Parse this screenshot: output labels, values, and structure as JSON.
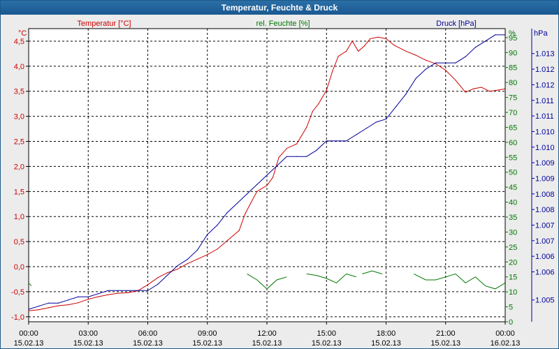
{
  "window": {
    "title": "Temperatur, Feuchte & Druck"
  },
  "chart_data": {
    "type": "line",
    "title": "Temperatur, Feuchte & Druck",
    "legend": [
      {
        "name": "Temperatur [°C]",
        "color": "#cc0000"
      },
      {
        "name": "rel. Feuchte [%]",
        "color": "#007700"
      },
      {
        "name": "Druck [hPa]",
        "color": "#000099"
      }
    ],
    "axes": {
      "temperature": {
        "unit": "°C",
        "min": -1.1,
        "max": 4.75,
        "ticks": [
          "-1,0",
          "-0,5",
          "0,0",
          "0,5",
          "1,0",
          "1,5",
          "2,0",
          "2,5",
          "3,0",
          "3,5",
          "4,0",
          "4,5"
        ],
        "tick_values": [
          -1,
          -0.5,
          0,
          0.5,
          1,
          1.5,
          2,
          2.5,
          3,
          3.5,
          4,
          4.5
        ]
      },
      "humidity": {
        "unit": "%",
        "min": 0,
        "max": 98,
        "ticks": [
          "0",
          "5",
          "10",
          "15",
          "20",
          "25",
          "30",
          "35",
          "40",
          "45",
          "50",
          "55",
          "60",
          "65",
          "70",
          "75",
          "80",
          "85",
          "90",
          "95"
        ],
        "tick_values": [
          0,
          5,
          10,
          15,
          20,
          25,
          30,
          35,
          40,
          45,
          50,
          55,
          60,
          65,
          70,
          75,
          80,
          85,
          90,
          95
        ]
      },
      "pressure": {
        "unit": "hPa",
        "min": 1.0043,
        "max": 1.0137,
        "ticks": [
          "1.005",
          "1.006",
          "1.006",
          "1.007",
          "1.007",
          "1.008",
          "1.008",
          "1.009",
          "1.009",
          "1.010",
          "1.010",
          "1.011",
          "1.011",
          "1.012",
          "1.012",
          "1.013"
        ],
        "tick_values": [
          1.005,
          1.0059,
          1.0064,
          1.0069,
          1.0074,
          1.0079,
          1.0084,
          1.0089,
          1.0094,
          1.0099,
          1.0104,
          1.0109,
          1.0114,
          1.0119,
          1.0124,
          1.0129
        ]
      }
    },
    "x": {
      "min": 0,
      "max": 24,
      "grid": true,
      "ticks": [
        {
          "time": "00:00",
          "date": "15.02.13"
        },
        {
          "time": "03:00",
          "date": "15.02.13"
        },
        {
          "time": "06:00",
          "date": "15.02.13"
        },
        {
          "time": "09:00",
          "date": "15.02.13"
        },
        {
          "time": "12:00",
          "date": "15.02.13"
        },
        {
          "time": "15:00",
          "date": "15.02.13"
        },
        {
          "time": "18:00",
          "date": "15.02.13"
        },
        {
          "time": "21:00",
          "date": "15.02.13"
        },
        {
          "time": "00:00",
          "date": "16.02.13"
        }
      ],
      "tick_values": [
        0,
        3,
        6,
        9,
        12,
        15,
        18,
        21,
        24
      ]
    },
    "series": [
      {
        "name": "Temperatur",
        "axis": "temperature",
        "color": "#cc0000",
        "points": [
          [
            0,
            -0.88
          ],
          [
            0.5,
            -0.86
          ],
          [
            1,
            -0.82
          ],
          [
            1.5,
            -0.78
          ],
          [
            2,
            -0.76
          ],
          [
            2.5,
            -0.72
          ],
          [
            3,
            -0.65
          ],
          [
            3.5,
            -0.6
          ],
          [
            4,
            -0.56
          ],
          [
            4.5,
            -0.53
          ],
          [
            5,
            -0.52
          ],
          [
            5.5,
            -0.48
          ],
          [
            6,
            -0.36
          ],
          [
            6.5,
            -0.22
          ],
          [
            7,
            -0.12
          ],
          [
            7.5,
            -0.05
          ],
          [
            8,
            0.06
          ],
          [
            8.5,
            0.15
          ],
          [
            9,
            0.24
          ],
          [
            9.5,
            0.35
          ],
          [
            10,
            0.52
          ],
          [
            10.3,
            0.62
          ],
          [
            10.6,
            0.72
          ],
          [
            10.9,
            1.05
          ],
          [
            11.2,
            1.28
          ],
          [
            11.5,
            1.5
          ],
          [
            12,
            1.62
          ],
          [
            12.3,
            1.78
          ],
          [
            12.6,
            2.18
          ],
          [
            13,
            2.36
          ],
          [
            13.5,
            2.45
          ],
          [
            14,
            2.78
          ],
          [
            14.3,
            3.1
          ],
          [
            14.6,
            3.25
          ],
          [
            15,
            3.52
          ],
          [
            15.3,
            3.9
          ],
          [
            15.6,
            4.2
          ],
          [
            16,
            4.3
          ],
          [
            16.3,
            4.5
          ],
          [
            16.6,
            4.3
          ],
          [
            16.9,
            4.4
          ],
          [
            17.2,
            4.55
          ],
          [
            17.6,
            4.58
          ],
          [
            18,
            4.55
          ],
          [
            18.4,
            4.42
          ],
          [
            19,
            4.3
          ],
          [
            19.5,
            4.22
          ],
          [
            20,
            4.12
          ],
          [
            20.5,
            4.05
          ],
          [
            21,
            3.92
          ],
          [
            21.5,
            3.72
          ],
          [
            22,
            3.48
          ],
          [
            22.4,
            3.55
          ],
          [
            22.8,
            3.58
          ],
          [
            23.2,
            3.5
          ],
          [
            23.6,
            3.52
          ],
          [
            24,
            3.55
          ]
        ]
      },
      {
        "name": "Druck",
        "axis": "pressure",
        "color": "#000099",
        "points": [
          [
            0,
            1.0047
          ],
          [
            0.5,
            1.0048
          ],
          [
            1,
            1.0049
          ],
          [
            1.5,
            1.0049
          ],
          [
            2,
            1.005
          ],
          [
            2.5,
            1.0051
          ],
          [
            3,
            1.0051
          ],
          [
            3.5,
            1.0052
          ],
          [
            4,
            1.0053
          ],
          [
            4.5,
            1.0053
          ],
          [
            5,
            1.0053
          ],
          [
            5.5,
            1.0053
          ],
          [
            6,
            1.0053
          ],
          [
            6.5,
            1.0055
          ],
          [
            7,
            1.0058
          ],
          [
            7.5,
            1.0061
          ],
          [
            8,
            1.0063
          ],
          [
            8.5,
            1.0066
          ],
          [
            9,
            1.0071
          ],
          [
            9.5,
            1.0074
          ],
          [
            10,
            1.0078
          ],
          [
            10.5,
            1.0081
          ],
          [
            11,
            1.0084
          ],
          [
            11.5,
            1.0087
          ],
          [
            12,
            1.009
          ],
          [
            12.5,
            1.0093
          ],
          [
            13,
            1.0096
          ],
          [
            13.5,
            1.0096
          ],
          [
            14,
            1.0096
          ],
          [
            14.5,
            1.0098
          ],
          [
            15,
            1.0101
          ],
          [
            15.5,
            1.0101
          ],
          [
            16,
            1.0101
          ],
          [
            16.5,
            1.0103
          ],
          [
            17,
            1.0105
          ],
          [
            17.5,
            1.0107
          ],
          [
            18,
            1.0108
          ],
          [
            18.5,
            1.0112
          ],
          [
            19,
            1.0116
          ],
          [
            19.5,
            1.0121
          ],
          [
            20,
            1.0124
          ],
          [
            20.5,
            1.0126
          ],
          [
            21,
            1.0126
          ],
          [
            21.5,
            1.0126
          ],
          [
            22,
            1.0128
          ],
          [
            22.5,
            1.0131
          ],
          [
            23,
            1.0133
          ],
          [
            23.5,
            1.0135
          ],
          [
            24,
            1.0135
          ]
        ]
      },
      {
        "name": "rel. Feuchte",
        "axis": "humidity",
        "color": "#007700",
        "segments": [
          [
            [
              0,
              12
            ]
          ],
          [
            [
              11,
              16
            ],
            [
              11.5,
              14
            ],
            [
              12,
              11
            ],
            [
              12.5,
              14
            ],
            [
              13,
              15
            ]
          ],
          [
            [
              14,
              16
            ],
            [
              14.5,
              15.5
            ],
            [
              15,
              14.5
            ],
            [
              15.5,
              13
            ],
            [
              16,
              16
            ],
            [
              16.5,
              15
            ]
          ],
          [
            [
              16.8,
              16
            ],
            [
              17.3,
              17
            ],
            [
              17.8,
              16
            ]
          ],
          [
            [
              19.4,
              16
            ],
            [
              20,
              14
            ],
            [
              20.5,
              14
            ],
            [
              21,
              15
            ],
            [
              21.5,
              16
            ],
            [
              22,
              13
            ],
            [
              22.5,
              15
            ],
            [
              23,
              12
            ],
            [
              23.5,
              11
            ],
            [
              24,
              13
            ]
          ]
        ]
      }
    ]
  }
}
